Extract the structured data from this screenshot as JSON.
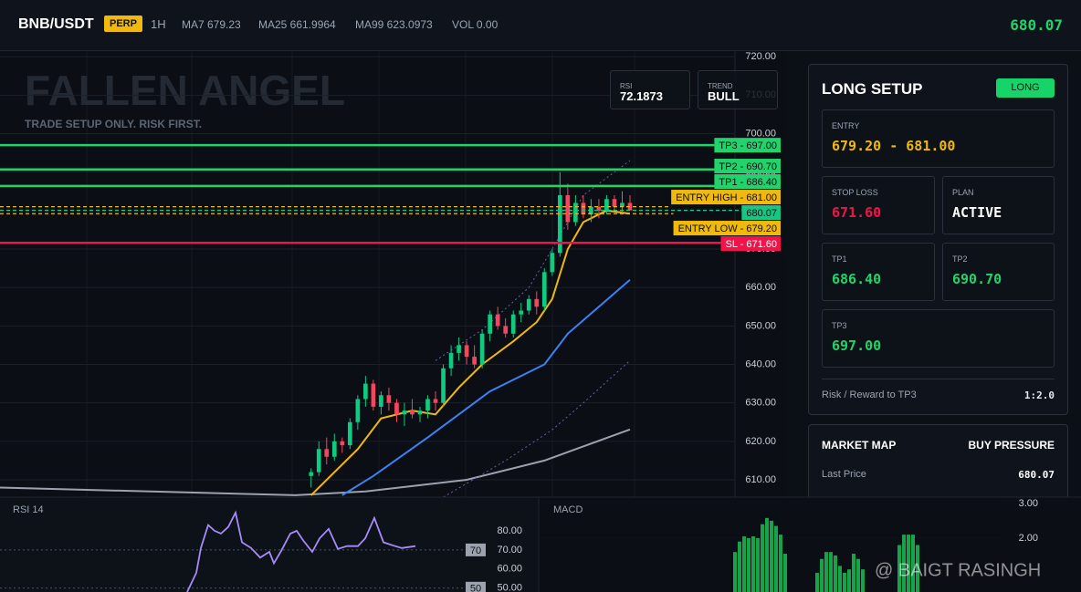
{
  "header": {
    "symbol": "BNB/USDT",
    "badge": "PERP",
    "interval": "1H",
    "ma7": "MA7 679.23",
    "ma25": "MA25 661.9964",
    "ma99": "MA99 623.0973",
    "vol": "VOL 0.00",
    "price": "680.07"
  },
  "watermark": {
    "title": "FALLEN ANGEL",
    "subtitle": "TRADE SETUP ONLY. RISK FIRST."
  },
  "stats": [
    {
      "label": "RSI",
      "value": "72.1873"
    },
    {
      "label": "TREND",
      "value": "BULL"
    }
  ],
  "chart_data": [
    {
      "type": "candlestick",
      "xlim": [
        -40,
        41
      ],
      "ylim": [
        605.5,
        721.7
      ],
      "yticks": [
        {
          "value": 610,
          "label": "610.00"
        },
        {
          "value": 620,
          "label": "620.00"
        },
        {
          "value": 630,
          "label": "630.00"
        },
        {
          "value": 640,
          "label": "640.00"
        },
        {
          "value": 650,
          "label": "650.00"
        },
        {
          "value": 660,
          "label": "660.00"
        },
        {
          "value": 670,
          "label": "670.00"
        },
        {
          "value": 680,
          "label": "680.00"
        },
        {
          "value": 690,
          "label": "690.00"
        },
        {
          "value": 700,
          "label": "700.00"
        },
        {
          "value": 710,
          "label": "710.00"
        },
        {
          "value": 720,
          "label": "720.00"
        }
      ],
      "grid": true,
      "up_color": "#0ecb81",
      "down_color": "#f6465d",
      "x": [
        0,
        1,
        2,
        3,
        4,
        5,
        6,
        7,
        8,
        9,
        10,
        11,
        12,
        13,
        14,
        15,
        16,
        17,
        18,
        19,
        20,
        21,
        22,
        23,
        24,
        25,
        26,
        27,
        28,
        29,
        30,
        31,
        32,
        33,
        34,
        35,
        36,
        37,
        38,
        39,
        40,
        41
      ],
      "open": [
        611,
        612,
        618,
        616,
        620,
        619,
        625,
        631,
        635,
        629,
        632,
        630,
        627,
        628,
        627,
        628,
        631,
        630,
        639,
        643,
        645,
        642,
        640,
        648,
        653,
        650,
        648,
        653,
        654,
        657,
        655,
        664,
        669,
        684,
        677,
        682,
        679,
        681,
        680,
        683,
        681,
        682
      ],
      "high": [
        613,
        620,
        621,
        622,
        621,
        626,
        632,
        637,
        636,
        633,
        634,
        631,
        630,
        631,
        629,
        632,
        633,
        640,
        645,
        647,
        646,
        645,
        649,
        654,
        655,
        652,
        654,
        656,
        658,
        659,
        665,
        670,
        690,
        687,
        684,
        684,
        683,
        683,
        684,
        684,
        685,
        684
      ],
      "low": [
        608,
        611,
        614,
        615,
        617,
        618,
        623,
        629,
        628,
        627,
        628,
        625,
        624,
        626,
        625,
        626,
        628,
        629,
        637,
        641,
        640,
        639,
        639,
        646,
        649,
        647,
        647,
        651,
        653,
        653,
        654,
        663,
        668,
        675,
        676,
        678,
        677,
        678,
        679,
        680,
        679,
        680
      ],
      "close": [
        612,
        618,
        616,
        620,
        619,
        625,
        631,
        635,
        629,
        632,
        630,
        627,
        628,
        627,
        628,
        631,
        630,
        639,
        643,
        645,
        642,
        640,
        648,
        653,
        650,
        648,
        653,
        654,
        657,
        655,
        664,
        669,
        684,
        677,
        682,
        679,
        681,
        680,
        683,
        681,
        682,
        680.07
      ],
      "lines": [
        {
          "color": "#9ca3af",
          "dash": false,
          "x": [
            -40,
            -2,
            7,
            20,
            30,
            41
          ],
          "values": [
            608,
            606,
            607,
            610,
            615,
            623.1
          ]
        },
        {
          "color": "#3b82f6",
          "dash": false,
          "x": [
            4,
            8,
            15,
            23,
            30,
            33,
            41
          ],
          "values": [
            606,
            611,
            621,
            633,
            640,
            648,
            662
          ]
        },
        {
          "color": "#f0b90b",
          "dash": false,
          "x": [
            0,
            6,
            9,
            13,
            16,
            19,
            22,
            26,
            29,
            31,
            33,
            35,
            38,
            41
          ],
          "values": [
            606,
            618,
            626,
            628,
            627,
            634,
            640,
            646,
            651,
            657,
            670,
            677,
            680,
            679.2
          ]
        },
        {
          "color": "#6d5fb0",
          "dash": true,
          "x": [
            16,
            22,
            28,
            31,
            35,
            41
          ],
          "values": [
            641,
            649,
            660,
            670,
            684,
            693
          ]
        },
        {
          "color": "#6d5fb0",
          "dash": true,
          "x": [
            17,
            25,
            31,
            35,
            41
          ],
          "values": [
            605.5,
            615,
            623,
            630,
            641
          ]
        }
      ],
      "levels": [
        {
          "value": 697,
          "label": "TP3 - 697.00",
          "color": "#22d36b",
          "text_color": "#0b0e14",
          "dash": false
        },
        {
          "value": 690.7,
          "label": "TP2 - 690.70",
          "color": "#22d36b",
          "text_color": "#0b0e14",
          "dash": false
        },
        {
          "value": 686.4,
          "label": "TP1 - 686.40",
          "color": "#22d36b",
          "text_color": "#0b0e14",
          "dash": false
        },
        {
          "value": 681,
          "label": "ENTRY HIGH - 681.00",
          "color": "#f0b90b",
          "text_color": "#0b0e14",
          "dash": true
        },
        {
          "value": 680.07,
          "label": "680.07",
          "color": "#16c784",
          "text_color": "#0b0e14",
          "dash": true
        },
        {
          "value": 679.2,
          "label": "ENTRY LOW - 679.20",
          "color": "#f0b90b",
          "text_color": "#0b0e14",
          "dash": true
        },
        {
          "value": 671.6,
          "label": "SL - 671.60",
          "color": "#f0144a",
          "text_color": "#ffffff",
          "dash": false
        }
      ]
    },
    {
      "type": "line",
      "title": "RSI 14",
      "color": "#a78bfa",
      "xlim": [
        0,
        59
      ],
      "ylim": [
        48,
        97.6
      ],
      "yticks": [
        {
          "value": 50,
          "label": "50.00"
        },
        {
          "value": 60,
          "label": "60.00"
        },
        {
          "value": 70,
          "label": "70.00"
        },
        {
          "value": 80,
          "label": "80.00"
        }
      ],
      "x": [
        20.5,
        21.5,
        22,
        22.8,
        23.5,
        24.2,
        25,
        25.8,
        26.5,
        27.5,
        28.5,
        29.5,
        30,
        30.8,
        31.8,
        32.5,
        33.2,
        34.2,
        35,
        36,
        37,
        38,
        39.2,
        40,
        41,
        42,
        43,
        44,
        45.5
      ],
      "values": [
        48,
        58,
        71,
        83,
        80,
        78.5,
        82,
        89.5,
        74,
        71,
        66,
        69,
        63,
        69.5,
        78.5,
        80,
        75,
        69,
        76,
        81,
        70.5,
        72,
        72,
        76,
        86.7,
        74,
        72.4,
        71,
        72
      ],
      "levels": [
        {
          "value": 70,
          "label": "70"
        },
        {
          "value": 50,
          "label": "50"
        }
      ]
    },
    {
      "type": "bar",
      "title": "MACD",
      "color": "#16a34a",
      "xlim": [
        0,
        104
      ],
      "ylim": [
        0.447,
        3.18
      ],
      "yticks": [
        {
          "value": 2,
          "label": "2.00"
        },
        {
          "value": 3,
          "label": "3.00"
        }
      ],
      "x": [
        43,
        44,
        45,
        46,
        47,
        48,
        49,
        50,
        51,
        52,
        53,
        54,
        61,
        62,
        63,
        64,
        65,
        66,
        67,
        68,
        69,
        70,
        71,
        79,
        80,
        81,
        82,
        83
      ],
      "values": [
        1.6,
        1.9,
        2.05,
        2.0,
        2.05,
        2.0,
        2.4,
        2.58,
        2.5,
        2.35,
        2.1,
        1.55,
        1.0,
        1.4,
        1.6,
        1.6,
        1.5,
        1.2,
        1.0,
        1.1,
        1.55,
        1.4,
        1.1,
        1.8,
        2.1,
        2.1,
        2.1,
        1.8
      ]
    }
  ],
  "setup": {
    "title": "LONG SETUP",
    "badge": "LONG",
    "entry": {
      "label": "ENTRY",
      "value": "679.20 - 681.00"
    },
    "stop_loss": {
      "label": "STOP LOSS",
      "value": "671.60"
    },
    "plan": {
      "label": "PLAN",
      "value": "ACTIVE"
    },
    "tp1": {
      "label": "TP1",
      "value": "686.40"
    },
    "tp2": {
      "label": "TP2",
      "value": "690.70"
    },
    "tp3": {
      "label": "TP3",
      "value": "697.00"
    },
    "rr": {
      "label": "Risk / Reward to TP3",
      "value": "1:2.0"
    }
  },
  "market_map": {
    "title": "MARKET MAP",
    "status": "BUY PRESSURE",
    "rows": [
      {
        "label": "Last Price",
        "value": "680.07"
      }
    ]
  },
  "credit": "@ BAIGT RASINGH"
}
